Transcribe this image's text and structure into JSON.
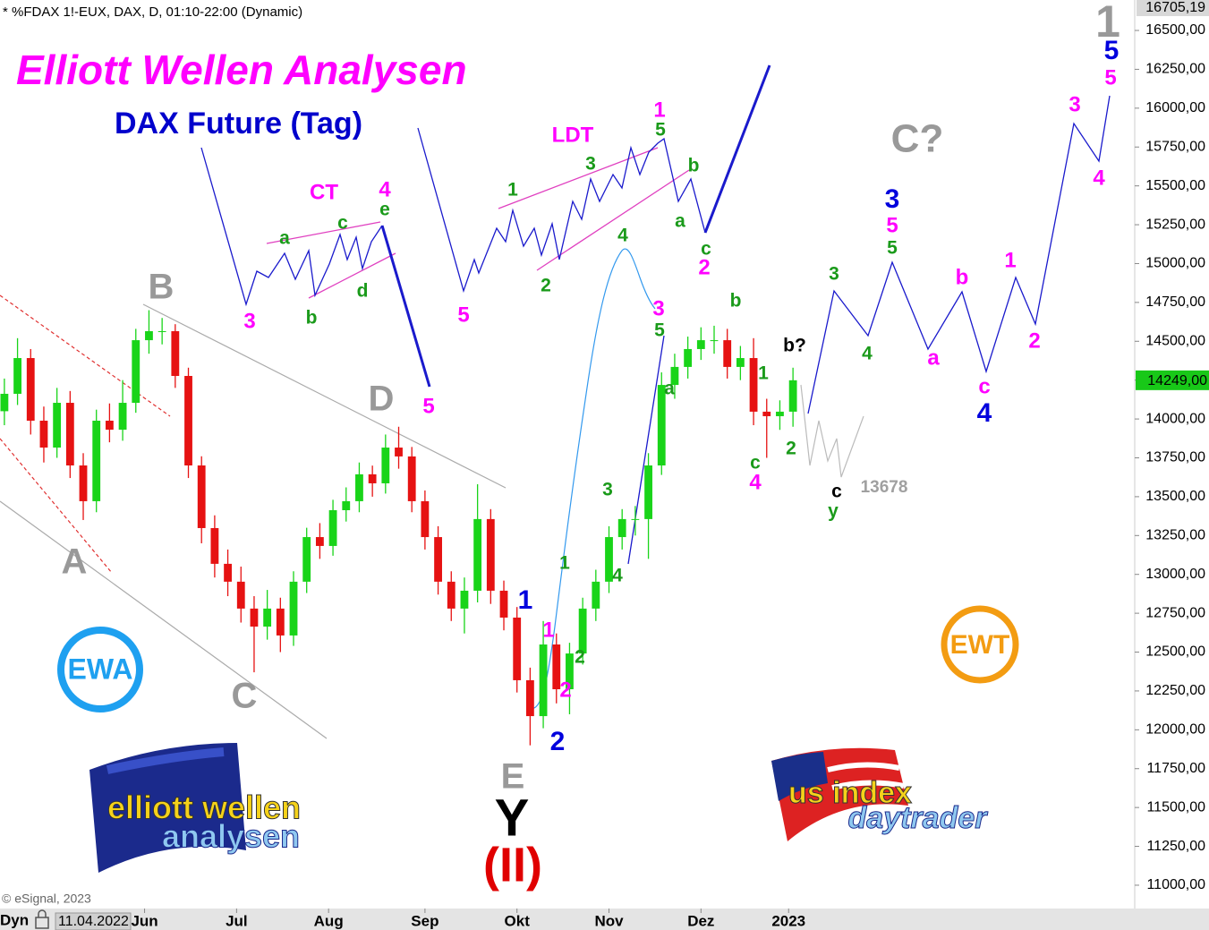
{
  "chart_data": {
    "type": "candlestick",
    "header": "* %FDAX 1!-EUX, DAX, D, 01:10-22:00 (Dynamic)",
    "title": "Elliott Wellen Analysen",
    "subtitle": "DAX Future (Tag)",
    "x": [
      0,
      3,
      6,
      9,
      12,
      15,
      18,
      21,
      24,
      27,
      30,
      33,
      36,
      39,
      42,
      45,
      48,
      51,
      54,
      57,
      60,
      63,
      66,
      69,
      72,
      75,
      78,
      81,
      84,
      87,
      90,
      93,
      96,
      99,
      102,
      105,
      108,
      111,
      114,
      117,
      120,
      123,
      126,
      129,
      132,
      135,
      138,
      141,
      144,
      147,
      150,
      153,
      156,
      159,
      162,
      165,
      168,
      171,
      174,
      177,
      180
    ],
    "open": [
      14050,
      14162,
      14392,
      13989,
      13816,
      14104,
      13701,
      13471,
      13989,
      13931,
      14104,
      14507,
      14565,
      14565,
      14277,
      13701,
      13298,
      13068,
      12953,
      12780,
      12664,
      12780,
      12607,
      12953,
      13240,
      13183,
      13413,
      13471,
      13644,
      13586,
      13816,
      13759,
      13471,
      13240,
      12953,
      12780,
      12895,
      13356,
      12895,
      12722,
      12319,
      12088,
      12549,
      12261,
      12491,
      12780,
      12953,
      13240,
      13356,
      13356,
      13701,
      14219,
      14335,
      14450,
      14507,
      14507,
      14335,
      14392,
      14047,
      14018,
      14047
    ],
    "high": [
      14260,
      14520,
      14450,
      14080,
      14200,
      14180,
      13780,
      14060,
      14100,
      14250,
      14580,
      14700,
      14650,
      14610,
      14330,
      13760,
      13380,
      13160,
      13050,
      12860,
      12900,
      12850,
      13020,
      13300,
      13330,
      13480,
      13560,
      13720,
      13700,
      13900,
      13950,
      13820,
      13540,
      13310,
      13020,
      12980,
      13580,
      13420,
      12960,
      12790,
      12400,
      12700,
      12620,
      12560,
      12850,
      13030,
      13310,
      13420,
      13440,
      13780,
      14300,
      14420,
      14530,
      14590,
      14600,
      14580,
      14470,
      14520,
      14130,
      14120,
      14330
    ],
    "low": [
      13960,
      14090,
      13900,
      13720,
      13750,
      13620,
      13350,
      13400,
      13850,
      13860,
      14040,
      14420,
      14480,
      14200,
      13620,
      13200,
      12980,
      12860,
      12690,
      12370,
      12580,
      12500,
      12540,
      12880,
      13100,
      13120,
      13340,
      13400,
      13500,
      13520,
      13680,
      13400,
      13160,
      12870,
      12700,
      12620,
      12820,
      12810,
      12640,
      12240,
      11900,
      12010,
      12170,
      12100,
      12420,
      12700,
      12880,
      13160,
      13250,
      13100,
      13640,
      14130,
      14260,
      14380,
      14420,
      14260,
      14250,
      13960,
      13750,
      13930,
      13950
    ],
    "close": [
      14162,
      14392,
      13989,
      13816,
      14104,
      13701,
      13471,
      13989,
      13931,
      14104,
      14507,
      14565,
      14565,
      14277,
      13701,
      13298,
      13068,
      12953,
      12780,
      12664,
      12780,
      12607,
      12953,
      13240,
      13183,
      13413,
      13471,
      13644,
      13586,
      13816,
      13759,
      13471,
      13240,
      12953,
      12780,
      12895,
      13356,
      12895,
      12722,
      12319,
      12088,
      12549,
      12261,
      12491,
      12780,
      12953,
      13240,
      13356,
      13356,
      13701,
      14219,
      14335,
      14450,
      14507,
      14507,
      14335,
      14392,
      14047,
      14018,
      14047,
      14249
    ],
    "up_color": "#19d419",
    "down_color": "#e61212",
    "xlim": [
      -1,
      258
    ],
    "ylim": [
      10850,
      16696
    ],
    "xticks": [
      {
        "value": 32,
        "label": "Jun"
      },
      {
        "value": 53,
        "label": "Jul"
      },
      {
        "value": 74,
        "label": "Aug"
      },
      {
        "value": 96,
        "label": "Sep"
      },
      {
        "value": 117,
        "label": "Okt"
      },
      {
        "value": 138,
        "label": "Nov"
      },
      {
        "value": 159,
        "label": "Dez"
      },
      {
        "value": 179,
        "label": "2023"
      }
    ],
    "yticks": [
      {
        "value": 16705.19,
        "label": "16705,19"
      },
      {
        "value": 16500,
        "label": "16500,00"
      },
      {
        "value": 16250,
        "label": "16250,00"
      },
      {
        "value": 16000,
        "label": "16000,00"
      },
      {
        "value": 15750,
        "label": "15750,00"
      },
      {
        "value": 15500,
        "label": "15500,00"
      },
      {
        "value": 15250,
        "label": "15250,00"
      },
      {
        "value": 15000,
        "label": "15000,00"
      },
      {
        "value": 14750,
        "label": "14750,00"
      },
      {
        "value": 14500,
        "label": "14500,00"
      },
      {
        "value": 14250,
        "label": "14250,00"
      },
      {
        "value": 14000,
        "label": "14000,00"
      },
      {
        "value": 13750,
        "label": "13750,00"
      },
      {
        "value": 13500,
        "label": "13500,00"
      },
      {
        "value": 13250,
        "label": "13250,00"
      },
      {
        "value": 13000,
        "label": "13000,00"
      },
      {
        "value": 12750,
        "label": "12750,00"
      },
      {
        "value": 12500,
        "label": "12500,00"
      },
      {
        "value": 12250,
        "label": "12250,00"
      },
      {
        "value": 12000,
        "label": "12000,00"
      },
      {
        "value": 11750,
        "label": "11750,00"
      },
      {
        "value": 11500,
        "label": "11500,00"
      },
      {
        "value": 11250,
        "label": "11250,00"
      },
      {
        "value": 11000,
        "label": "11000,00"
      }
    ],
    "last_price": {
      "value": 14249,
      "label": "14249,00",
      "color": "#18c818"
    },
    "annotations": [
      {
        "text": "B",
        "color": "#999999"
      },
      {
        "text": "A",
        "color": "#999999"
      },
      {
        "text": "C",
        "color": "#999999"
      },
      {
        "text": "D",
        "color": "#999999"
      },
      {
        "text": "E",
        "color": "#999999"
      },
      {
        "text": "Y",
        "color": "#000000"
      },
      {
        "text": "(II)",
        "color": "#e00000"
      },
      {
        "text": "C?",
        "color": "#999999"
      },
      {
        "text": "1",
        "color": "#999999"
      },
      {
        "text": "CT",
        "color": "#ff00ff"
      },
      {
        "text": "LDT",
        "color": "#ff00ff"
      },
      {
        "text": "3",
        "color": "#ff00ff"
      },
      {
        "text": "4",
        "color": "#ff00ff"
      },
      {
        "text": "5",
        "color": "#ff00ff"
      },
      {
        "text": "5",
        "color": "#ff00ff"
      },
      {
        "text": "1",
        "color": "#ff00ff"
      },
      {
        "text": "2",
        "color": "#ff00ff"
      },
      {
        "text": "3",
        "color": "#ff00ff"
      },
      {
        "text": "4",
        "color": "#ff00ff"
      },
      {
        "text": "1",
        "color": "#ff00ff"
      },
      {
        "text": "2",
        "color": "#ff00ff"
      },
      {
        "text": "5",
        "color": "#ff00ff"
      },
      {
        "text": "a",
        "color": "#ff00ff"
      },
      {
        "text": "b",
        "color": "#ff00ff"
      },
      {
        "text": "c",
        "color": "#ff00ff"
      },
      {
        "text": "1",
        "color": "#ff00ff"
      },
      {
        "text": "2",
        "color": "#ff00ff"
      },
      {
        "text": "3",
        "color": "#ff00ff"
      },
      {
        "text": "4",
        "color": "#ff00ff"
      },
      {
        "text": "5",
        "color": "#ff00ff"
      },
      {
        "text": "1",
        "color": "#0000dd"
      },
      {
        "text": "2",
        "color": "#0000dd"
      },
      {
        "text": "3",
        "color": "#0000dd"
      },
      {
        "text": "4",
        "color": "#0000dd"
      },
      {
        "text": "5",
        "color": "#0000dd"
      },
      {
        "text": "a",
        "color": "#1a9a1a"
      },
      {
        "text": "b",
        "color": "#1a9a1a"
      },
      {
        "text": "c",
        "color": "#1a9a1a"
      },
      {
        "text": "d",
        "color": "#1a9a1a"
      },
      {
        "text": "e",
        "color": "#1a9a1a"
      },
      {
        "text": "1",
        "color": "#1a9a1a"
      },
      {
        "text": "3",
        "color": "#1a9a1a"
      },
      {
        "text": "5",
        "color": "#1a9a1a"
      },
      {
        "text": "2",
        "color": "#1a9a1a"
      },
      {
        "text": "4",
        "color": "#1a9a1a"
      },
      {
        "text": "b",
        "color": "#1a9a1a"
      },
      {
        "text": "a",
        "color": "#1a9a1a"
      },
      {
        "text": "c",
        "color": "#1a9a1a"
      },
      {
        "text": "1",
        "color": "#1a9a1a"
      },
      {
        "text": "2",
        "color": "#1a9a1a"
      },
      {
        "text": "3",
        "color": "#1a9a1a"
      },
      {
        "text": "4",
        "color": "#1a9a1a"
      },
      {
        "text": "5",
        "color": "#1a9a1a"
      },
      {
        "text": "a",
        "color": "#1a9a1a"
      },
      {
        "text": "b",
        "color": "#1a9a1a"
      },
      {
        "text": "c",
        "color": "#1a9a1a"
      },
      {
        "text": "1",
        "color": "#1a9a1a"
      },
      {
        "text": "2",
        "color": "#1a9a1a"
      },
      {
        "text": "3",
        "color": "#1a9a1a"
      },
      {
        "text": "4",
        "color": "#1a9a1a"
      },
      {
        "text": "5",
        "color": "#1a9a1a"
      },
      {
        "text": "y",
        "color": "#1a9a1a"
      },
      {
        "text": "b?",
        "color": "#000000"
      },
      {
        "text": "c",
        "color": "#000000"
      },
      {
        "text": "13678",
        "color": "#a0a0a0"
      }
    ],
    "footer": {
      "mode": "Dyn",
      "start_date": "11.04.2022",
      "copyright": "© eSignal, 2023"
    },
    "logos": {
      "ewa": "EWA",
      "ewt": "EWT",
      "ewa_line1": "elliott wellen",
      "ewa_line2": "analysen",
      "us_line1": "us index",
      "us_line2": "daytrader"
    }
  }
}
